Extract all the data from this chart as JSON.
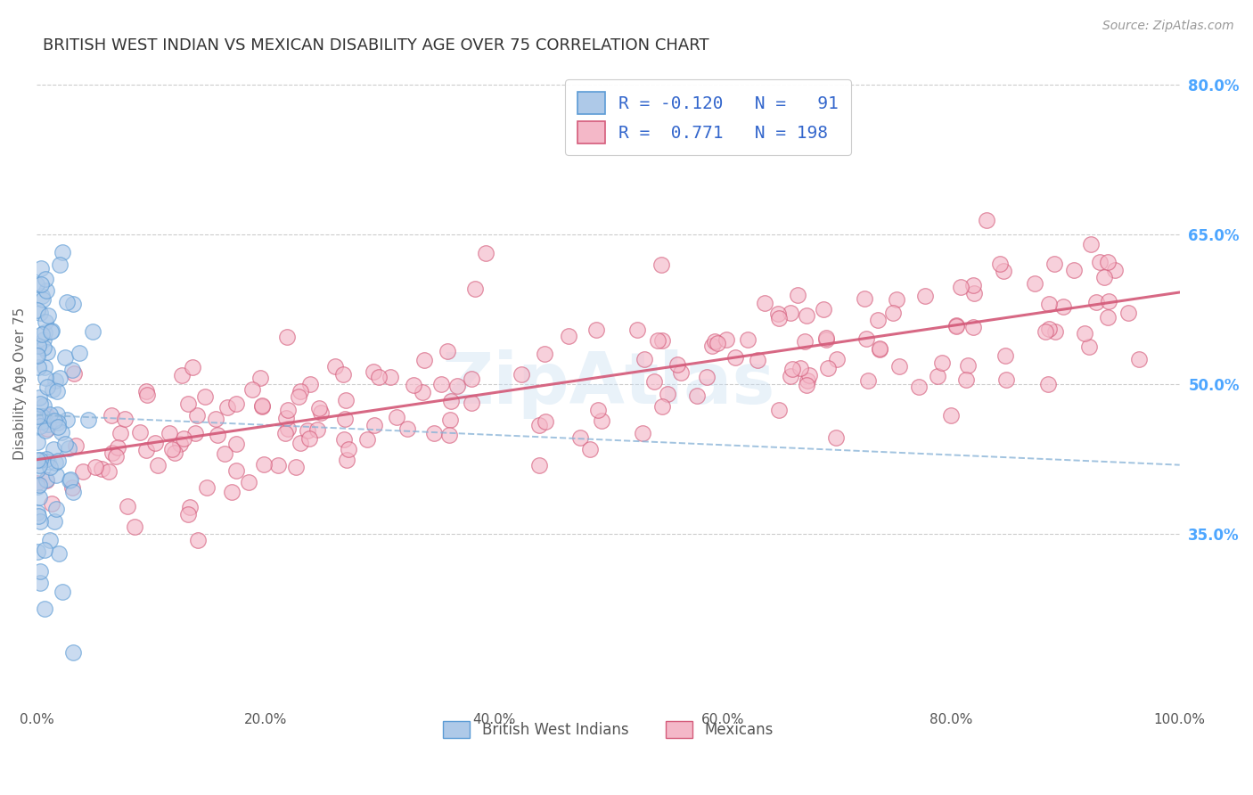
{
  "title": "BRITISH WEST INDIAN VS MEXICAN DISABILITY AGE OVER 75 CORRELATION CHART",
  "source": "Source: ZipAtlas.com",
  "ylabel": "Disability Age Over 75",
  "watermark": "ZipAtlas",
  "xlim": [
    0,
    1.0
  ],
  "ylim": [
    0.18,
    0.82
  ],
  "xticks": [
    0.0,
    0.2,
    0.4,
    0.6,
    0.8,
    1.0
  ],
  "xticklabels": [
    "0.0%",
    "20.0%",
    "40.0%",
    "60.0%",
    "80.0%",
    "100.0%"
  ],
  "yticks_right": [
    0.35,
    0.5,
    0.65,
    0.8
  ],
  "ytick_right_labels": [
    "35.0%",
    "50.0%",
    "65.0%",
    "80.0%"
  ],
  "hlines": [
    0.35,
    0.5,
    0.65,
    0.8
  ],
  "blue_R": -0.12,
  "blue_N": 91,
  "pink_R": 0.771,
  "pink_N": 198,
  "blue_color": "#aec9e8",
  "pink_color": "#f4b8c8",
  "blue_edge_color": "#5b9bd5",
  "pink_edge_color": "#d45b7a",
  "blue_line_color": "#5b9bd5",
  "pink_line_color": "#d45b7a",
  "background_color": "#ffffff",
  "grid_color": "#cccccc",
  "title_color": "#333333",
  "right_label_color": "#4da6ff",
  "legend_text_color": "#3366cc"
}
